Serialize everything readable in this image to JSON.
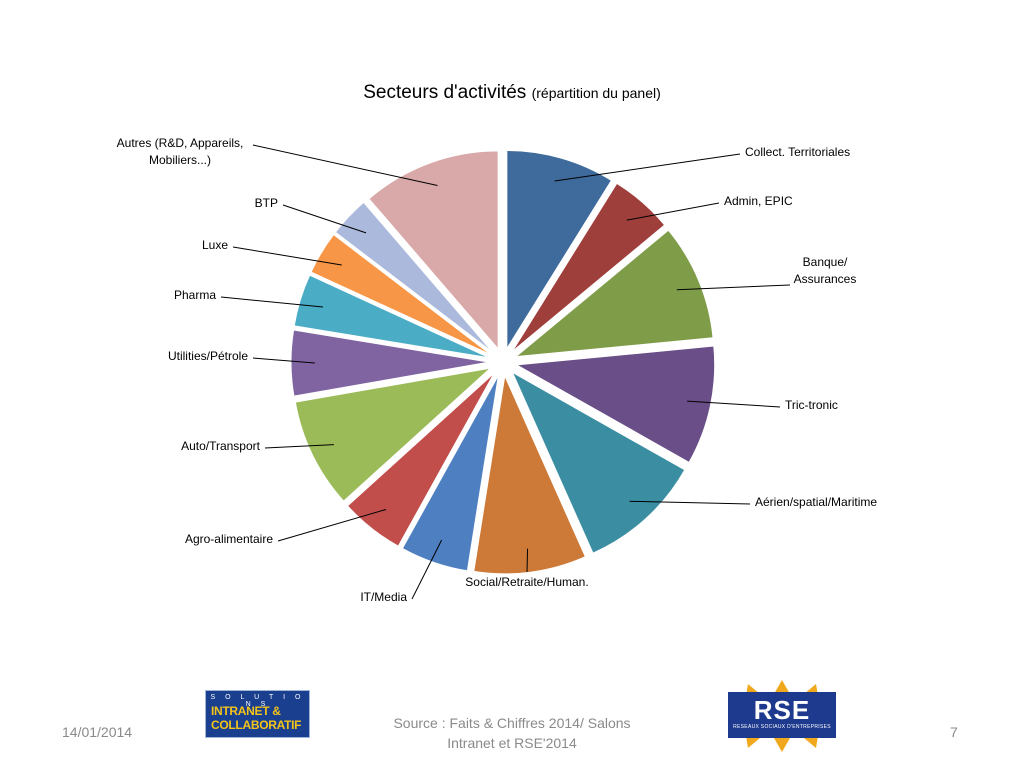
{
  "slide": {
    "date": "14/01/2014",
    "page_number": "7",
    "source_line1": "Source : Faits & Chiffres 2014/ Salons",
    "source_line2": "Intranet et RSE'2014",
    "logo_left": {
      "top": "S O L U T I O N S",
      "line1": "INTRANET &",
      "line2": "COLLABORATIF"
    },
    "logo_right": {
      "text": "RSE",
      "subtitle": "RESEAUX SOCIAUX D'ENTREPRISES"
    }
  },
  "chart_data": {
    "type": "pie",
    "title": "Secteurs d'activités",
    "subtitle": "(répartition du panel)",
    "exploded": true,
    "legend": "none (callout labels)",
    "slices": [
      {
        "label": "Collect. Territoriales",
        "value": 8.3,
        "color": "#3f6a9c"
      },
      {
        "label": "Admin, EPIC",
        "value": 4.8,
        "color": "#9e3f3c"
      },
      {
        "label": "Banque/ Assurances",
        "value": 8.9,
        "color": "#7f9c48"
      },
      {
        "label": "Tric-tronic",
        "value": 9.1,
        "color": "#6a4e88"
      },
      {
        "label": "Aérien/spatial/Maritime",
        "value": 9.5,
        "color": "#3b8ea2"
      },
      {
        "label": "Social/Retraite/Human.",
        "value": 8.6,
        "color": "#cd7a38"
      },
      {
        "label": "IT/Media",
        "value": 5.2,
        "color": "#4e7fc1"
      },
      {
        "label": "Agro-alimentaire",
        "value": 4.9,
        "color": "#c24e4b"
      },
      {
        "label": "Auto/Transport",
        "value": 8.4,
        "color": "#9bbb59"
      },
      {
        "label": "Utilities/Pétrole",
        "value": 5.0,
        "color": "#8064a2"
      },
      {
        "label": "Pharma",
        "value": 4.0,
        "color": "#4bacc6"
      },
      {
        "label": "Luxe",
        "value": 3.3,
        "color": "#f79646"
      },
      {
        "label": "BTP",
        "value": 3.1,
        "color": "#aab9dc"
      },
      {
        "label": "Autres (R&D, Appareils, Mobiliers...)",
        "value": 10.6,
        "color": "#d9a8a8"
      }
    ]
  }
}
